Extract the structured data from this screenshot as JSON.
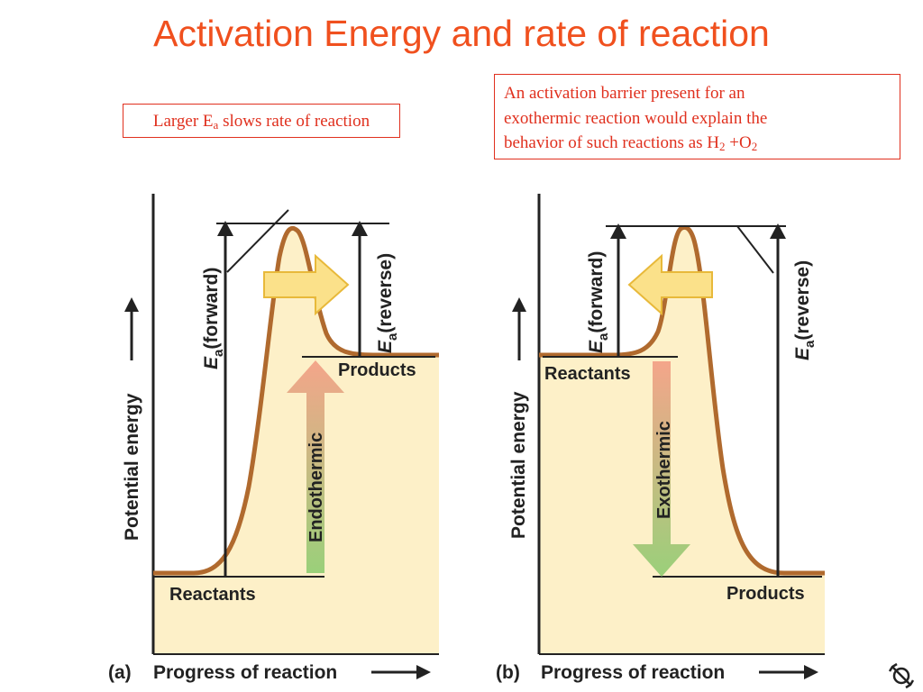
{
  "title": "Activation Energy and rate of reaction",
  "box_left": {
    "prefix": "Larger E",
    "sub": "a",
    "suffix": " slows rate of reaction"
  },
  "box_right": {
    "line1": "An activation barrier present for an",
    "line2": "exothermic reaction would explain the",
    "line3_prefix": "behavior of such reactions as H",
    "line3_sub1": "2",
    "line3_mid": " +O",
    "line3_sub2": "2"
  },
  "diagram_a": {
    "panel": "(a)",
    "x_label": "Progress of reaction",
    "y_label": "Potential energy",
    "ea_forward": "(forward)",
    "ea_reverse": "(reverse)",
    "ea_symbol": "E",
    "ea_sub": "a",
    "reactants": "Reactants",
    "products": "Products",
    "arrow_label": "Endothermic"
  },
  "diagram_b": {
    "panel": "(b)",
    "x_label": "Progress of reaction",
    "y_label": "Potential energy",
    "ea_forward": "(forward)",
    "ea_reverse": "(reverse)",
    "ea_symbol": "E",
    "ea_sub": "a",
    "reactants": "Reactants",
    "products": "Products",
    "arrow_label": "Exothermic"
  },
  "colors": {
    "title": "#f0501e",
    "box_text": "#e0301e",
    "fill": "#fdf0c8",
    "curve": "#b06a2e",
    "endo_top": "#f4a58a",
    "endo_bottom": "#9ad07a",
    "horizontal_arrow": "#fbe18a"
  },
  "nav_icon": "nav-icon"
}
